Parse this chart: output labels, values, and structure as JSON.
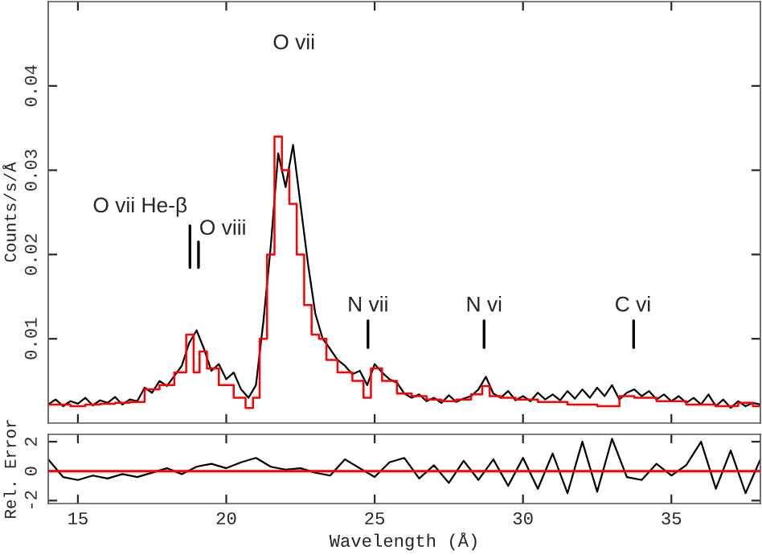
{
  "chart_data": [
    {
      "type": "line",
      "ylabel": "Counts/s/Å",
      "xlim": [
        14,
        38
      ],
      "ylim": [
        0,
        0.05
      ],
      "yticks": [
        0.01,
        0.02,
        0.03,
        0.04
      ],
      "xticks": [
        15,
        20,
        25,
        30,
        35
      ],
      "tick_labels": "y",
      "grid": false,
      "legend": false,
      "series": [
        {
          "type": "line",
          "color": "#000000",
          "x": [
            14.0,
            14.25,
            14.5,
            14.75,
            15.0,
            15.25,
            15.5,
            15.75,
            16.0,
            16.25,
            16.5,
            16.75,
            17.0,
            17.25,
            17.5,
            17.75,
            18.0,
            18.25,
            18.5,
            18.75,
            19.0,
            19.25,
            19.5,
            19.75,
            20.0,
            20.25,
            20.5,
            20.75,
            21.0,
            21.25,
            21.5,
            21.75,
            22.0,
            22.25,
            22.5,
            22.75,
            23.0,
            23.25,
            23.5,
            23.75,
            24.0,
            24.25,
            24.5,
            24.75,
            25.0,
            25.25,
            25.5,
            25.75,
            26.0,
            26.25,
            26.5,
            26.75,
            27.0,
            27.25,
            27.5,
            27.75,
            28.0,
            28.25,
            28.5,
            28.75,
            29.0,
            29.25,
            29.5,
            29.75,
            30.0,
            30.25,
            30.5,
            30.75,
            31.0,
            31.25,
            31.5,
            31.75,
            32.0,
            32.25,
            32.5,
            32.75,
            33.0,
            33.25,
            33.5,
            33.75,
            34.0,
            34.25,
            34.5,
            34.75,
            35.0,
            35.25,
            35.5,
            35.75,
            36.0,
            36.25,
            36.5,
            36.75,
            37.0,
            37.25,
            37.5,
            37.75,
            38.0
          ],
          "values": [
            0.0022,
            0.0028,
            0.002,
            0.0026,
            0.0023,
            0.003,
            0.0021,
            0.0027,
            0.0024,
            0.0031,
            0.0022,
            0.0028,
            0.0026,
            0.0042,
            0.0036,
            0.005,
            0.0044,
            0.0056,
            0.0068,
            0.0095,
            0.011,
            0.0088,
            0.0062,
            0.007,
            0.0052,
            0.006,
            0.004,
            0.003,
            0.0045,
            0.012,
            0.021,
            0.032,
            0.028,
            0.033,
            0.026,
            0.019,
            0.013,
            0.01,
            0.0088,
            0.0075,
            0.0068,
            0.0058,
            0.0062,
            0.0045,
            0.007,
            0.006,
            0.0052,
            0.0048,
            0.0035,
            0.003,
            0.0034,
            0.0026,
            0.003,
            0.0024,
            0.0033,
            0.0025,
            0.0029,
            0.0032,
            0.004,
            0.0055,
            0.0035,
            0.003,
            0.0038,
            0.0027,
            0.0032,
            0.0026,
            0.0036,
            0.0028,
            0.0034,
            0.0027,
            0.0038,
            0.0029,
            0.004,
            0.003,
            0.0042,
            0.0032,
            0.0045,
            0.0028,
            0.0036,
            0.004,
            0.0032,
            0.0038,
            0.0028,
            0.0034,
            0.0026,
            0.0032,
            0.0024,
            0.003,
            0.0022,
            0.0034,
            0.002,
            0.0028,
            0.0018,
            0.0026,
            0.002,
            0.0024,
            0.0022
          ]
        },
        {
          "type": "step",
          "color": "#ff0000",
          "x": [
            14,
            14.5,
            15,
            15.5,
            16,
            16.5,
            17,
            17.5,
            18,
            18.5,
            18.8,
            19.0,
            19.2,
            19.5,
            20,
            20.5,
            20.8,
            21,
            21.25,
            21.5,
            21.75,
            22.0,
            22.25,
            22.5,
            22.75,
            23.0,
            23.25,
            23.5,
            24.0,
            24.5,
            24.75,
            25.0,
            25.5,
            26,
            26.5,
            27,
            27.5,
            28,
            28.5,
            28.75,
            29,
            29.5,
            30,
            31,
            32,
            33,
            33.5,
            34,
            35,
            36,
            37,
            37.5,
            38
          ],
          "values": [
            0.0022,
            0.0022,
            0.002,
            0.0022,
            0.0023,
            0.0024,
            0.0025,
            0.004,
            0.0045,
            0.006,
            0.0105,
            0.006,
            0.0085,
            0.0065,
            0.0045,
            0.003,
            0.0018,
            0.003,
            0.01,
            0.02,
            0.034,
            0.03,
            0.026,
            0.02,
            0.014,
            0.0105,
            0.01,
            0.0075,
            0.006,
            0.005,
            0.003,
            0.0065,
            0.005,
            0.0035,
            0.0032,
            0.0028,
            0.0026,
            0.0028,
            0.0034,
            0.0044,
            0.0032,
            0.003,
            0.0028,
            0.0025,
            0.0022,
            0.002,
            0.0032,
            0.003,
            0.0026,
            0.0022,
            0.002,
            0.0024,
            0.002
          ]
        }
      ],
      "annotations": [
        "O vii He-β",
        "O viii",
        "O vii",
        "N vii",
        "N vi",
        "C vi"
      ]
    },
    {
      "type": "line",
      "xlabel": "Wavelength (Å)",
      "ylabel": "Rel. Error",
      "xlim": [
        14,
        38
      ],
      "ylim": [
        -2.2,
        2.5
      ],
      "xticks": [
        15,
        20,
        25,
        30,
        35
      ],
      "yticks": [
        -2,
        0,
        2
      ],
      "grid": false,
      "legend": false,
      "ref_lines": [
        {
          "axis": "y",
          "value": 0,
          "color": "#ff0000"
        }
      ],
      "series": [
        {
          "type": "line",
          "color": "#000000",
          "x": [
            14,
            14.5,
            15,
            15.5,
            16,
            16.5,
            17,
            17.5,
            18,
            18.5,
            19,
            19.5,
            20,
            20.5,
            21,
            21.5,
            22,
            22.5,
            23,
            23.5,
            24,
            24.5,
            25,
            25.5,
            26,
            26.5,
            27,
            27.5,
            28,
            28.5,
            29,
            29.5,
            30,
            30.5,
            31,
            31.5,
            32,
            32.5,
            33,
            33.5,
            34,
            34.5,
            35,
            35.5,
            36,
            36.5,
            37,
            37.5,
            38
          ],
          "values": [
            0.8,
            -0.4,
            -0.6,
            -0.3,
            -0.5,
            -0.2,
            -0.4,
            -0.1,
            0.2,
            -0.2,
            0.3,
            0.5,
            0.2,
            0.6,
            0.9,
            0.3,
            0.1,
            0.2,
            -0.1,
            -0.3,
            0.8,
            0.2,
            -0.4,
            0.6,
            0.9,
            -0.5,
            0.4,
            -0.8,
            0.7,
            -0.6,
            0.8,
            -1.0,
            0.9,
            -1.2,
            1.2,
            -1.5,
            2.0,
            -1.4,
            2.2,
            -0.4,
            -0.6,
            0.5,
            -0.3,
            0.4,
            2.0,
            -1.2,
            1.4,
            -1.5,
            0.8
          ]
        }
      ]
    }
  ]
}
